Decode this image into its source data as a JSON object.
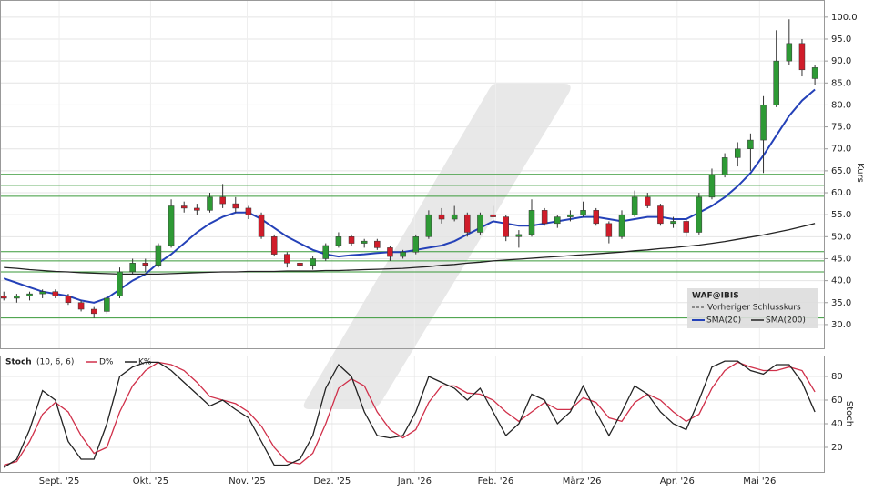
{
  "chart_data": [
    {
      "type": "candlestick",
      "y_label": "Kurs",
      "legend": {
        "symbol": "WAF@IBIS",
        "previous": "Vorheriger Schlusskurs"
      },
      "up_color": "#2e9a35",
      "down_color": "#d01c2a",
      "candles": [
        [
          36.5,
          37.5,
          35.5,
          36
        ],
        [
          36,
          37,
          35,
          36.5
        ],
        [
          36.5,
          37.5,
          35.5,
          37
        ],
        [
          37,
          38,
          36,
          37.5
        ],
        [
          37.5,
          38,
          36,
          36.5
        ],
        [
          36.5,
          37,
          34.5,
          35
        ],
        [
          35,
          35.5,
          33,
          33.5
        ],
        [
          33.5,
          34,
          31.5,
          32.5
        ],
        [
          33,
          36.5,
          32.5,
          36
        ],
        [
          36.5,
          43,
          36,
          42
        ],
        [
          42,
          45,
          41.5,
          44
        ],
        [
          44,
          45,
          42,
          43.5
        ],
        [
          43.5,
          48.5,
          43,
          48
        ],
        [
          48,
          58.5,
          47.5,
          57
        ],
        [
          57,
          58,
          55.5,
          56.5
        ],
        [
          56.5,
          57.5,
          55,
          56
        ],
        [
          56,
          60,
          55.5,
          59
        ],
        [
          59,
          62,
          56.5,
          57.5
        ],
        [
          57.5,
          59,
          55.5,
          56.5
        ],
        [
          56.5,
          57,
          54,
          55
        ],
        [
          55,
          55.5,
          49.5,
          50
        ],
        [
          50,
          50.5,
          45.5,
          46
        ],
        [
          46,
          46.5,
          43,
          44
        ],
        [
          44,
          44.5,
          42,
          43.5
        ],
        [
          43.5,
          45.5,
          42.5,
          45
        ],
        [
          45,
          48.5,
          44.5,
          48
        ],
        [
          48,
          51,
          47.5,
          50
        ],
        [
          50,
          50.5,
          48,
          48.5
        ],
        [
          48.5,
          49.5,
          47.5,
          49
        ],
        [
          49,
          49.5,
          47,
          47.5
        ],
        [
          47.5,
          48,
          44.5,
          45.5
        ],
        [
          45.5,
          47,
          45,
          46.5
        ],
        [
          46.5,
          50.5,
          46,
          50
        ],
        [
          50,
          56,
          49.5,
          55
        ],
        [
          55,
          56.5,
          53,
          54
        ],
        [
          54,
          57,
          53.5,
          55
        ],
        [
          55,
          55.5,
          50,
          51
        ],
        [
          51,
          55.5,
          50.5,
          55
        ],
        [
          55,
          57,
          53.5,
          54.5
        ],
        [
          54.5,
          55,
          49,
          50
        ],
        [
          50,
          51.5,
          47.5,
          50.5
        ],
        [
          50.5,
          58.5,
          50,
          56
        ],
        [
          56,
          56.5,
          52.5,
          53
        ],
        [
          53,
          55,
          52,
          54.5
        ],
        [
          54.5,
          56,
          53.5,
          55
        ],
        [
          55,
          58,
          54.5,
          56
        ],
        [
          56,
          56.5,
          52.5,
          53
        ],
        [
          53,
          53.5,
          48.5,
          50
        ],
        [
          50,
          56,
          49.5,
          55
        ],
        [
          55,
          60.5,
          54.5,
          59
        ],
        [
          59,
          60,
          56.5,
          57
        ],
        [
          57,
          57.5,
          52.5,
          53
        ],
        [
          53,
          54.5,
          52,
          53.5
        ],
        [
          53.5,
          54,
          50,
          51
        ],
        [
          51,
          60,
          50.5,
          59
        ],
        [
          59,
          65.5,
          58.5,
          64
        ],
        [
          64,
          69,
          63.5,
          68
        ],
        [
          68,
          71.5,
          66,
          70
        ],
        [
          70,
          73.5,
          65,
          72
        ],
        [
          72,
          82,
          64.5,
          80
        ],
        [
          80,
          97,
          79.5,
          90
        ],
        [
          90,
          99.5,
          89,
          94
        ],
        [
          94,
          95,
          86.5,
          88
        ],
        [
          86,
          89,
          84.5,
          88.5
        ]
      ],
      "series": [
        {
          "name": "SMA(20)",
          "color": "#2441b8",
          "values": [
            40.5,
            39.5,
            38.5,
            37.5,
            37,
            36.5,
            35.5,
            35,
            36,
            38,
            40,
            41.5,
            44,
            46,
            48.5,
            51,
            53,
            54.5,
            55.5,
            55.5,
            54,
            52,
            50,
            48.5,
            47,
            46,
            45.5,
            45.8,
            46,
            46.3,
            46.5,
            46.5,
            47,
            47.5,
            48,
            49,
            50.5,
            52,
            53.5,
            53,
            52.5,
            52.5,
            53,
            53.5,
            54,
            54.5,
            54.5,
            54,
            53.5,
            54,
            54.5,
            54.5,
            54,
            54,
            55.5,
            57,
            59,
            61.5,
            64.5,
            68.5,
            73,
            77.5,
            81,
            83.5
          ]
        },
        {
          "name": "SMA(200)",
          "color": "#222222",
          "values": [
            43,
            42.8,
            42.5,
            42.3,
            42.1,
            42,
            41.8,
            41.7,
            41.6,
            41.5,
            41.5,
            41.5,
            41.5,
            41.6,
            41.7,
            41.8,
            41.9,
            42,
            42,
            42.1,
            42.1,
            42.1,
            42.2,
            42.2,
            42.2,
            42.3,
            42.3,
            42.4,
            42.5,
            42.6,
            42.7,
            42.8,
            43,
            43.2,
            43.5,
            43.7,
            44,
            44.2,
            44.5,
            44.7,
            44.9,
            45.1,
            45.3,
            45.5,
            45.7,
            45.9,
            46.1,
            46.3,
            46.5,
            46.8,
            47,
            47.3,
            47.5,
            47.8,
            48.1,
            48.5,
            48.9,
            49.4,
            49.9,
            50.4,
            51,
            51.6,
            52.3,
            53
          ]
        }
      ],
      "levels": [
        64.2,
        61.7,
        59.2,
        46.6,
        44.5,
        42,
        31.5
      ],
      "level_color": "#3a9a3a",
      "xlim": [
        -0.3,
        63.7
      ],
      "ylim": [
        24.6,
        103.9
      ],
      "yticks": [
        {
          "value": 30,
          "label": "30.0"
        },
        {
          "value": 35,
          "label": "35.0"
        },
        {
          "value": 40,
          "label": "40.0"
        },
        {
          "value": 45,
          "label": "45.0"
        },
        {
          "value": 50,
          "label": "50.0"
        },
        {
          "value": 55,
          "label": "55.0"
        },
        {
          "value": 60,
          "label": "60.0"
        },
        {
          "value": 65,
          "label": "65.0"
        },
        {
          "value": 70,
          "label": "70.0"
        },
        {
          "value": 75,
          "label": "75.0"
        },
        {
          "value": 80,
          "label": "80.0"
        },
        {
          "value": 85,
          "label": "85.0"
        },
        {
          "value": 90,
          "label": "90.0"
        },
        {
          "value": 95,
          "label": "95.0"
        },
        {
          "value": 100,
          "label": "100.0"
        }
      ],
      "xticks": [
        {
          "value": 4.3,
          "label": "Sept. '25"
        },
        {
          "value": 11.4,
          "label": "Okt. '25"
        },
        {
          "value": 18.9,
          "label": "Nov. '25"
        },
        {
          "value": 25.5,
          "label": "Dez. '25"
        },
        {
          "value": 31.9,
          "label": "Jan. '26"
        },
        {
          "value": 38.2,
          "label": "Feb. '26"
        },
        {
          "value": 44.9,
          "label": "März '26"
        },
        {
          "value": 52.3,
          "label": "Apr. '26"
        },
        {
          "value": 58.7,
          "label": "Mai '26"
        }
      ],
      "grid": true
    },
    {
      "type": "line",
      "title": "Stoch",
      "params": "(10, 6, 6)",
      "y_label": "Stoch",
      "series": [
        {
          "name": "D%",
          "color": "#d0304a",
          "values": [
            5,
            8,
            25,
            48,
            58,
            50,
            30,
            15,
            20,
            50,
            72,
            85,
            92,
            90,
            85,
            75,
            63,
            60,
            57,
            50,
            38,
            20,
            8,
            6,
            15,
            40,
            70,
            78,
            72,
            50,
            35,
            28,
            35,
            58,
            72,
            72,
            66,
            65,
            60,
            50,
            42,
            50,
            58,
            52,
            52,
            62,
            58,
            45,
            42,
            58,
            65,
            60,
            50,
            42,
            48,
            70,
            85,
            92,
            88,
            85,
            85,
            88,
            85,
            67
          ]
        },
        {
          "name": "K%",
          "color": "#222222",
          "values": [
            3,
            10,
            35,
            68,
            60,
            25,
            10,
            10,
            40,
            80,
            88,
            92,
            92,
            85,
            75,
            65,
            55,
            60,
            52,
            45,
            25,
            5,
            5,
            10,
            30,
            70,
            90,
            80,
            50,
            30,
            28,
            30,
            50,
            80,
            75,
            70,
            60,
            70,
            50,
            30,
            40,
            65,
            60,
            40,
            50,
            72,
            50,
            30,
            50,
            72,
            65,
            50,
            40,
            35,
            60,
            88,
            93,
            93,
            85,
            82,
            90,
            90,
            75,
            50
          ]
        }
      ],
      "ylim": [
        0,
        95
      ],
      "yticks": [
        20,
        40,
        60,
        80
      ],
      "grid": true
    }
  ]
}
